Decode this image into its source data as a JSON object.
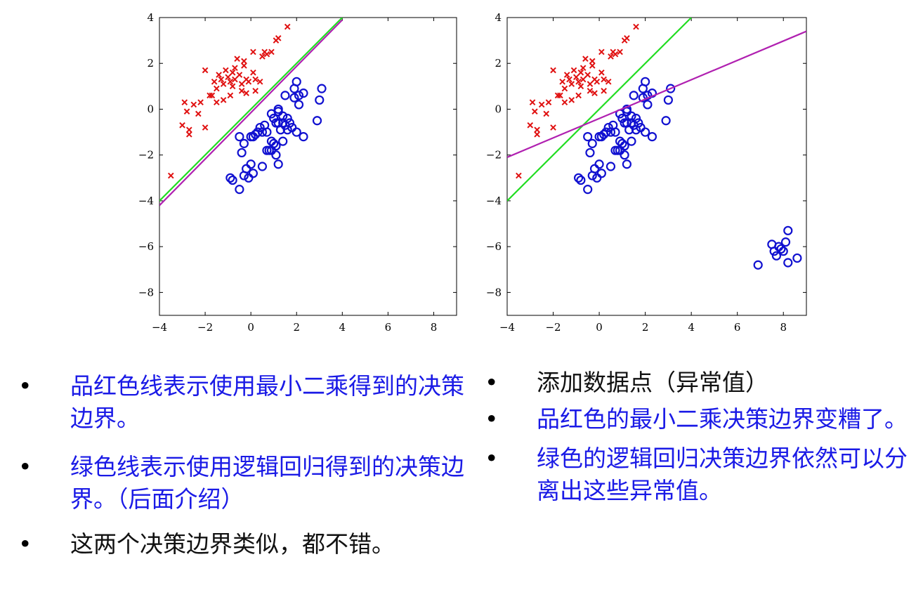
{
  "chart_data": [
    {
      "type": "scatter",
      "title": "",
      "xlabel": "",
      "ylabel": "",
      "xlim": [
        -4,
        9
      ],
      "ylim": [
        -9,
        4
      ],
      "xticks": [
        -4,
        -2,
        0,
        2,
        4,
        6,
        8
      ],
      "yticks": [
        4,
        2,
        0,
        -2,
        -4,
        -6,
        -8
      ],
      "xtick_labels": [
        "−4",
        "−2",
        "0",
        "2",
        "4",
        "6",
        "8"
      ],
      "ytick_labels": [
        "4",
        "2",
        "0",
        "−2",
        "−4",
        "−6",
        "−8"
      ],
      "series": [
        {
          "name": "class-x",
          "marker": "x",
          "color": "#e01010",
          "points": [
            [
              -3.5,
              -2.9
            ],
            [
              -3.0,
              -0.7
            ],
            [
              -2.9,
              0.3
            ],
            [
              -2.8,
              -0.1
            ],
            [
              -2.7,
              -0.9
            ],
            [
              -2.7,
              -1.1
            ],
            [
              -2.5,
              0.2
            ],
            [
              -2.3,
              -0.2
            ],
            [
              -2.2,
              0.3
            ],
            [
              -2.0,
              1.7
            ],
            [
              -2.0,
              -0.8
            ],
            [
              -1.8,
              0.6
            ],
            [
              -1.7,
              0.6
            ],
            [
              -1.6,
              1.2
            ],
            [
              -1.5,
              0.3
            ],
            [
              -1.5,
              0.9
            ],
            [
              -1.4,
              1.5
            ],
            [
              -1.3,
              1.3
            ],
            [
              -1.2,
              0.4
            ],
            [
              -1.2,
              1.1
            ],
            [
              -1.1,
              1.7
            ],
            [
              -1.0,
              1.4
            ],
            [
              -0.9,
              1.2
            ],
            [
              -0.9,
              0.6
            ],
            [
              -0.8,
              1.0
            ],
            [
              -0.8,
              1.6
            ],
            [
              -0.7,
              1.8
            ],
            [
              -0.7,
              1.3
            ],
            [
              -0.6,
              2.2
            ],
            [
              -0.5,
              1.5
            ],
            [
              -0.4,
              0.8
            ],
            [
              -0.4,
              1.1
            ],
            [
              -0.3,
              1.9
            ],
            [
              -0.3,
              2.1
            ],
            [
              -0.2,
              0.7
            ],
            [
              -0.2,
              1.3
            ],
            [
              -0.1,
              1.2
            ],
            [
              0.1,
              2.5
            ],
            [
              0.1,
              1.6
            ],
            [
              0.2,
              0.8
            ],
            [
              0.2,
              1.3
            ],
            [
              0.4,
              1.2
            ],
            [
              0.5,
              2.3
            ],
            [
              0.6,
              2.5
            ],
            [
              0.7,
              2.4
            ],
            [
              0.9,
              2.5
            ],
            [
              1.1,
              3.0
            ],
            [
              1.2,
              3.1
            ],
            [
              1.6,
              3.6
            ]
          ]
        },
        {
          "name": "class-o",
          "marker": "o",
          "color": "#1010d0",
          "points": [
            [
              -0.9,
              -3.0
            ],
            [
              -0.8,
              -3.1
            ],
            [
              -0.5,
              -3.5
            ],
            [
              -0.5,
              -1.2
            ],
            [
              -0.4,
              -1.9
            ],
            [
              -0.3,
              -1.5
            ],
            [
              -0.3,
              -2.9
            ],
            [
              -0.2,
              -2.6
            ],
            [
              -0.1,
              -3.0
            ],
            [
              0.0,
              -2.4
            ],
            [
              0.0,
              -1.2
            ],
            [
              0.1,
              -2.8
            ],
            [
              0.1,
              -1.2
            ],
            [
              0.2,
              -1.1
            ],
            [
              0.3,
              -1.0
            ],
            [
              0.4,
              -0.8
            ],
            [
              0.5,
              -2.5
            ],
            [
              0.5,
              -1.0
            ],
            [
              0.6,
              -0.7
            ],
            [
              0.7,
              -1.8
            ],
            [
              0.7,
              -1.0
            ],
            [
              0.8,
              -1.8
            ],
            [
              0.9,
              -0.2
            ],
            [
              0.9,
              -1.4
            ],
            [
              0.9,
              -1.8
            ],
            [
              1.0,
              -0.4
            ],
            [
              1.0,
              -1.5
            ],
            [
              1.1,
              -2.0
            ],
            [
              1.1,
              -0.6
            ],
            [
              1.1,
              -1.6
            ],
            [
              1.2,
              -0.1
            ],
            [
              1.2,
              -2.4
            ],
            [
              1.2,
              0.0
            ],
            [
              1.2,
              -0.6
            ],
            [
              1.3,
              -0.9
            ],
            [
              1.4,
              -0.3
            ],
            [
              1.4,
              -1.4
            ],
            [
              1.4,
              -0.6
            ],
            [
              1.5,
              -0.7
            ],
            [
              1.5,
              0.6
            ],
            [
              1.6,
              -0.9
            ],
            [
              1.6,
              -0.4
            ],
            [
              1.7,
              -0.6
            ],
            [
              1.8,
              -0.8
            ],
            [
              1.9,
              0.5
            ],
            [
              1.9,
              0.9
            ],
            [
              2.0,
              1.2
            ],
            [
              2.0,
              -1.0
            ],
            [
              2.1,
              0.2
            ],
            [
              2.1,
              0.6
            ],
            [
              2.3,
              -1.2
            ],
            [
              2.3,
              0.7
            ],
            [
              2.9,
              -0.5
            ],
            [
              3.0,
              0.4
            ],
            [
              3.1,
              0.9
            ]
          ]
        }
      ],
      "lines": [
        {
          "name": "green-decision-boundary",
          "color": "#22dd22",
          "from": [
            -4,
            -4.0
          ],
          "to": [
            4,
            4.0
          ]
        },
        {
          "name": "magenta-decision-boundary",
          "color": "#b020b0",
          "from": [
            -4,
            -4.2
          ],
          "to": [
            4,
            3.9
          ]
        }
      ]
    },
    {
      "type": "scatter",
      "title": "",
      "xlabel": "",
      "ylabel": "",
      "xlim": [
        -4,
        9
      ],
      "ylim": [
        -9,
        4
      ],
      "xticks": [
        -4,
        -2,
        0,
        2,
        4,
        6,
        8
      ],
      "yticks": [
        4,
        2,
        0,
        -2,
        -4,
        -6,
        -8
      ],
      "xtick_labels": [
        "−4",
        "−2",
        "0",
        "2",
        "4",
        "6",
        "8"
      ],
      "ytick_labels": [
        "4",
        "2",
        "0",
        "−2",
        "−4",
        "−6",
        "−8"
      ],
      "series": [
        {
          "name": "class-x",
          "marker": "x",
          "color": "#e01010",
          "points": [
            [
              -3.5,
              -2.9
            ],
            [
              -3.0,
              -0.7
            ],
            [
              -2.9,
              0.3
            ],
            [
              -2.8,
              -0.1
            ],
            [
              -2.7,
              -0.9
            ],
            [
              -2.7,
              -1.1
            ],
            [
              -2.5,
              0.2
            ],
            [
              -2.3,
              -0.2
            ],
            [
              -2.2,
              0.3
            ],
            [
              -2.0,
              1.7
            ],
            [
              -2.0,
              -0.8
            ],
            [
              -1.8,
              0.6
            ],
            [
              -1.7,
              0.6
            ],
            [
              -1.6,
              1.2
            ],
            [
              -1.5,
              0.3
            ],
            [
              -1.5,
              0.9
            ],
            [
              -1.4,
              1.5
            ],
            [
              -1.3,
              1.3
            ],
            [
              -1.2,
              0.4
            ],
            [
              -1.2,
              1.1
            ],
            [
              -1.1,
              1.7
            ],
            [
              -1.0,
              1.4
            ],
            [
              -0.9,
              1.2
            ],
            [
              -0.9,
              0.6
            ],
            [
              -0.8,
              1.0
            ],
            [
              -0.8,
              1.6
            ],
            [
              -0.7,
              1.8
            ],
            [
              -0.7,
              1.3
            ],
            [
              -0.6,
              2.2
            ],
            [
              -0.5,
              1.5
            ],
            [
              -0.4,
              0.8
            ],
            [
              -0.4,
              1.1
            ],
            [
              -0.3,
              1.9
            ],
            [
              -0.3,
              2.1
            ],
            [
              -0.2,
              0.7
            ],
            [
              -0.2,
              1.3
            ],
            [
              -0.1,
              1.2
            ],
            [
              0.1,
              2.5
            ],
            [
              0.1,
              1.6
            ],
            [
              0.2,
              0.8
            ],
            [
              0.2,
              1.3
            ],
            [
              0.4,
              1.2
            ],
            [
              0.5,
              2.3
            ],
            [
              0.6,
              2.5
            ],
            [
              0.7,
              2.4
            ],
            [
              0.9,
              2.5
            ],
            [
              1.1,
              3.0
            ],
            [
              1.2,
              3.1
            ],
            [
              1.6,
              3.6
            ]
          ]
        },
        {
          "name": "class-o",
          "marker": "o",
          "color": "#1010d0",
          "points": [
            [
              -0.9,
              -3.0
            ],
            [
              -0.8,
              -3.1
            ],
            [
              -0.5,
              -3.5
            ],
            [
              -0.5,
              -1.2
            ],
            [
              -0.4,
              -1.9
            ],
            [
              -0.3,
              -1.5
            ],
            [
              -0.3,
              -2.9
            ],
            [
              -0.2,
              -2.6
            ],
            [
              -0.1,
              -3.0
            ],
            [
              0.0,
              -2.4
            ],
            [
              0.0,
              -1.2
            ],
            [
              0.1,
              -2.8
            ],
            [
              0.1,
              -1.2
            ],
            [
              0.2,
              -1.1
            ],
            [
              0.3,
              -1.0
            ],
            [
              0.4,
              -0.8
            ],
            [
              0.5,
              -2.5
            ],
            [
              0.5,
              -1.0
            ],
            [
              0.6,
              -0.7
            ],
            [
              0.7,
              -1.8
            ],
            [
              0.7,
              -1.0
            ],
            [
              0.8,
              -1.8
            ],
            [
              0.9,
              -0.2
            ],
            [
              0.9,
              -1.4
            ],
            [
              0.9,
              -1.8
            ],
            [
              1.0,
              -0.4
            ],
            [
              1.0,
              -1.5
            ],
            [
              1.1,
              -2.0
            ],
            [
              1.1,
              -0.6
            ],
            [
              1.1,
              -1.6
            ],
            [
              1.2,
              -0.1
            ],
            [
              1.2,
              -2.4
            ],
            [
              1.2,
              0.0
            ],
            [
              1.2,
              -0.6
            ],
            [
              1.3,
              -0.9
            ],
            [
              1.4,
              -0.3
            ],
            [
              1.4,
              -1.4
            ],
            [
              1.4,
              -0.6
            ],
            [
              1.5,
              -0.7
            ],
            [
              1.5,
              0.6
            ],
            [
              1.6,
              -0.9
            ],
            [
              1.6,
              -0.4
            ],
            [
              1.7,
              -0.6
            ],
            [
              1.8,
              -0.8
            ],
            [
              1.9,
              0.5
            ],
            [
              1.9,
              0.9
            ],
            [
              2.0,
              1.2
            ],
            [
              2.0,
              -1.0
            ],
            [
              2.1,
              0.2
            ],
            [
              2.1,
              0.6
            ],
            [
              2.3,
              -1.2
            ],
            [
              2.3,
              0.7
            ],
            [
              2.9,
              -0.5
            ],
            [
              3.0,
              0.4
            ],
            [
              3.1,
              0.9
            ],
            [
              6.9,
              -6.8
            ],
            [
              7.5,
              -5.9
            ],
            [
              7.6,
              -6.2
            ],
            [
              7.7,
              -6.4
            ],
            [
              7.8,
              -6.0
            ],
            [
              7.9,
              -6.1
            ],
            [
              8.0,
              -6.2
            ],
            [
              8.1,
              -5.8
            ],
            [
              8.2,
              -6.7
            ],
            [
              8.2,
              -5.3
            ],
            [
              8.6,
              -6.5
            ]
          ]
        }
      ],
      "lines": [
        {
          "name": "green-decision-boundary",
          "color": "#22dd22",
          "from": [
            -4,
            -4.0
          ],
          "to": [
            4,
            4.0
          ]
        },
        {
          "name": "magenta-decision-boundary",
          "color": "#b020b0",
          "from": [
            -4,
            -2.1
          ],
          "to": [
            9,
            3.4
          ]
        }
      ]
    }
  ],
  "bullets_left": [
    {
      "text": "品红色线表示使用最小二乘得到的决策边界。",
      "color": "blue"
    },
    {
      "text": "绿色线表示使用逻辑回归得到的决策边界。（后面介绍）",
      "color": "blue"
    },
    {
      "text": "这两个决策边界类似，都不错。",
      "color": "black"
    }
  ],
  "bullets_right": [
    {
      "text": "添加数据点（异常值）",
      "color": "black"
    },
    {
      "text": "品红色的最小二乘决策边界变糟了。",
      "color": "blue"
    },
    {
      "text": "绿色的逻辑回归决策边界依然可以分离出这些异常值。",
      "color": "blue"
    }
  ],
  "bullet_symbol": "•"
}
